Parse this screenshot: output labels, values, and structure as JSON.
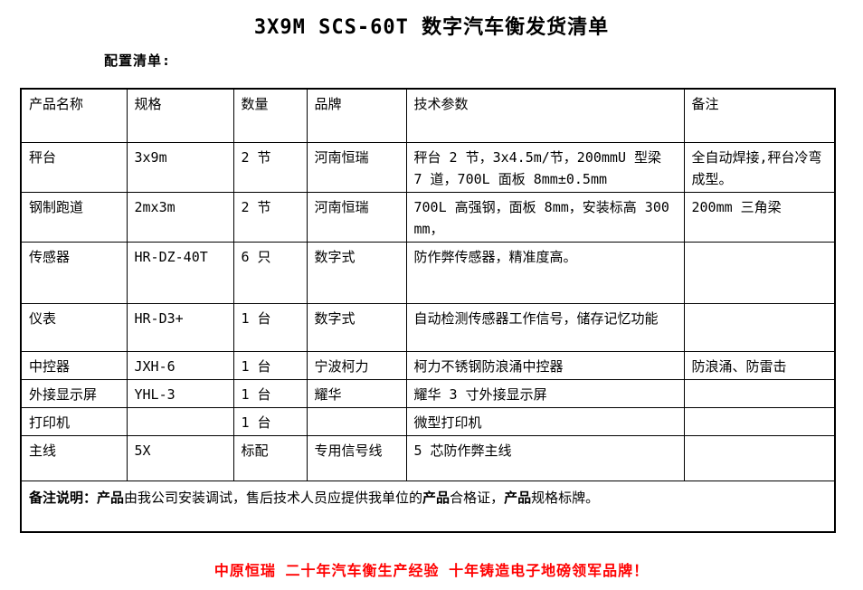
{
  "title": "3X9M SCS-60T 数字汽车衡发货清单",
  "subtitle": "配置清单:",
  "table": {
    "headers": [
      "产品名称",
      "规格",
      "数量",
      "品牌",
      "技术参数",
      "备注"
    ],
    "rows": [
      [
        "秤台",
        "3x9m",
        "2 节",
        "河南恒瑞",
        "秤台 2 节，3x4.5m/节，200mmU 型梁 7 道，700L 面板 8mm±0.5mm",
        "全自动焊接,秤台冷弯成型。"
      ],
      [
        "钢制跑道",
        "2mx3m",
        "2 节",
        "河南恒瑞",
        "700L 高强钢，面板 8mm，安装标高 300mm，",
        "200mm 三角梁"
      ],
      [
        "传感器",
        "HR-DZ-40T",
        "6 只",
        "数字式",
        "防作弊传感器，精准度高。",
        ""
      ],
      [
        "仪表",
        "HR-D3+",
        "1 台",
        "数字式",
        "自动检测传感器工作信号，储存记忆功能",
        ""
      ],
      [
        "中控器",
        "JXH-6",
        "1 台",
        "宁波柯力",
        "柯力不锈钢防浪涌中控器",
        "防浪涌、防雷击"
      ],
      [
        "外接显示屏",
        "YHL-3",
        "1 台",
        "耀华",
        "耀华 3 寸外接显示屏",
        ""
      ],
      [
        "打印机",
        "",
        "1 台",
        "",
        "微型打印机",
        ""
      ],
      [
        "主线",
        "5X",
        "标配",
        "专用信号线",
        "5 芯防作弊主线",
        ""
      ]
    ],
    "footer_segments": [
      {
        "text": "备注说明：",
        "bold": true
      },
      {
        "text": "产品",
        "bold": true
      },
      {
        "text": "由我公司安装调试，售后技术人员应提供我单位的",
        "bold": false
      },
      {
        "text": "产品",
        "bold": true
      },
      {
        "text": "合格证，",
        "bold": false
      },
      {
        "text": "产品",
        "bold": true
      },
      {
        "text": "规格标牌。",
        "bold": false
      }
    ]
  },
  "slogan": {
    "text": "中原恒瑞 二十年汽车衡生产经验 十年铸造电子地磅领军品牌！",
    "color": "#ff0000"
  }
}
